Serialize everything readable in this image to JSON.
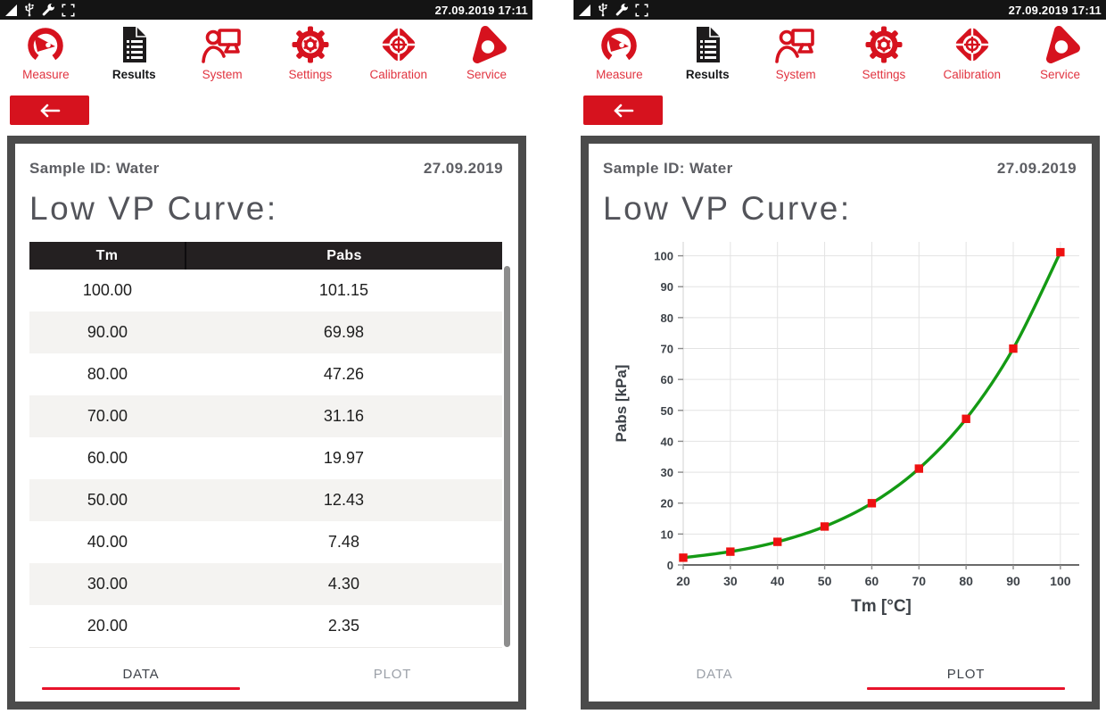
{
  "status_bar": {
    "datetime": "27.09.2019 17:11",
    "icons": [
      "signal-triangle",
      "usb",
      "wrench",
      "fullscreen"
    ]
  },
  "toolbar": {
    "items": [
      {
        "label": "Measure",
        "active": false
      },
      {
        "label": "Results",
        "active": true
      },
      {
        "label": "System",
        "active": false
      },
      {
        "label": "Settings",
        "active": false
      },
      {
        "label": "Calibration",
        "active": false
      },
      {
        "label": "Service",
        "active": false
      }
    ]
  },
  "result_header": {
    "sample_line": "Sample ID: Water",
    "date": "27.09.2019",
    "title": "Low VP Curve:"
  },
  "tabs": {
    "data_label": "DATA",
    "plot_label": "PLOT"
  },
  "table": {
    "columns": [
      "Tm",
      "Pabs"
    ],
    "rows": [
      [
        "100.00",
        "101.15"
      ],
      [
        "90.00",
        "69.98"
      ],
      [
        "80.00",
        "47.26"
      ],
      [
        "70.00",
        "31.16"
      ],
      [
        "60.00",
        "19.97"
      ],
      [
        "50.00",
        "12.43"
      ],
      [
        "40.00",
        "7.48"
      ],
      [
        "30.00",
        "4.30"
      ],
      [
        "20.00",
        "2.35"
      ]
    ]
  },
  "chart_data": {
    "type": "line",
    "title": "Low VP Curve",
    "x": [
      20,
      30,
      40,
      50,
      60,
      70,
      80,
      90,
      100
    ],
    "y": [
      2.35,
      4.3,
      7.48,
      12.43,
      19.97,
      31.16,
      47.26,
      69.98,
      101.15
    ],
    "xlabel": "Tm [°C]",
    "ylabel": "Pabs [kPa]",
    "xlim": [
      20,
      104
    ],
    "ylim": [
      0,
      104.5
    ],
    "xticks": [
      20,
      30,
      40,
      50,
      60,
      70,
      80,
      90,
      100
    ],
    "yticks": [
      0,
      10,
      20,
      30,
      40,
      50,
      60,
      70,
      80,
      90,
      100
    ],
    "grid": true,
    "legend": "none",
    "line_color": "#149a14",
    "marker": "square",
    "marker_color": "#ee1111"
  },
  "colors": {
    "accent_red": "#d6121e",
    "label_red": "#e13440",
    "tab_underline_red": "#e8132b",
    "statusbar_black": "#141414",
    "card_border_gray": "#4b4b4b",
    "header_text_gray": "#5d5e63",
    "alt_row": "#f4f3f1"
  }
}
